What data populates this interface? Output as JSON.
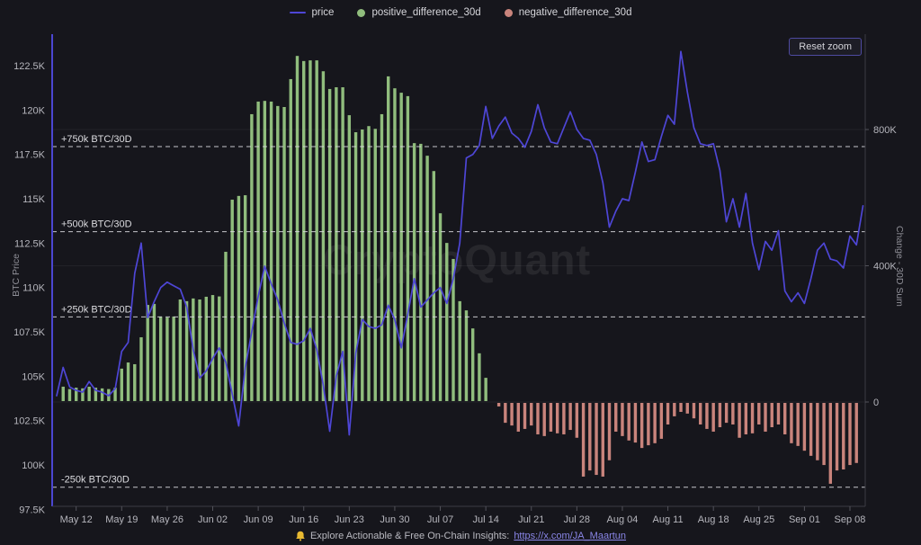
{
  "watermark": "CryptoQuant",
  "toolbar": {
    "reset_zoom_label": "Reset zoom"
  },
  "legend": {
    "position": "top-center",
    "items": [
      {
        "label": "price",
        "marker": "line",
        "color": "#4e46d6"
      },
      {
        "label": "positive_difference_30d",
        "marker": "dot",
        "color": "#90bd7d"
      },
      {
        "label": "negative_difference_30d",
        "marker": "dot",
        "color": "#c9847c"
      }
    ]
  },
  "footer": {
    "icon": "bell-icon",
    "icon_color": "#e8b931",
    "text": "Explore Actionable & Free On-Chain Insights:",
    "link": "https://x.com/JA_Maartun"
  },
  "colors": {
    "background": "#16161c",
    "price_line": "#4e46d6",
    "positive_bar": "#90bd7d",
    "negative_bar": "#c9847c",
    "dashed_annotation": "#d9d9de",
    "tick_label": "#b6b6bd",
    "gridline": "rgba(255,255,255,0.055)",
    "left_axis_line": "#4b46d2",
    "axis_line": "#3c3c44"
  },
  "chart_data": {
    "type": "mixed",
    "subtype": "line + bar (dual axis), daily data",
    "grid": "horizontal gridlines at right-axis ticks only",
    "x_axis": {
      "unit": "day",
      "start_date": "May 09",
      "end_date": "Sep 10",
      "tick_labels": [
        "May 12",
        "May 19",
        "May 26",
        "Jun 02",
        "Jun 09",
        "Jun 16",
        "Jun 23",
        "Jun 30",
        "Jul 07",
        "Jul 14",
        "Jul 21",
        "Jul 28",
        "Aug 04",
        "Aug 11",
        "Aug 18",
        "Aug 25",
        "Sep 01",
        "Sep 08"
      ],
      "tick_day_offsets": [
        3,
        10,
        17,
        24,
        31,
        38,
        45,
        52,
        59,
        66,
        73,
        80,
        87,
        94,
        101,
        108,
        115,
        122
      ]
    },
    "y_left": {
      "title": "BTC Price",
      "unit": "K USD",
      "tick_labels": [
        "122.5K",
        "120K",
        "117.5K",
        "115K",
        "112.5K",
        "110K",
        "107.5K",
        "105K",
        "102.5K",
        "100K",
        "97.5K"
      ],
      "tick_values_k": [
        122.5,
        120,
        117.5,
        115,
        112.5,
        110,
        107.5,
        105,
        102.5,
        100,
        97.5
      ],
      "range_k": [
        98,
        124.3
      ]
    },
    "y_right": {
      "title": "Change - 30D Sum",
      "unit": "K BTC",
      "tick_labels": [
        "800K",
        "400K",
        "0"
      ],
      "tick_values_k": [
        800,
        400,
        0
      ],
      "range_k": [
        -306,
        1080
      ]
    },
    "annotations": [
      {
        "label": "+750k BTC/30D",
        "value_k": 750
      },
      {
        "label": "+500k BTC/30D",
        "value_k": 500
      },
      {
        "label": "+250k BTC/30D",
        "value_k": 250
      },
      {
        "label": "-250k BTC/30D",
        "value_k": -250
      }
    ],
    "series": [
      {
        "name": "price",
        "type": "line",
        "axis": "left",
        "color": "#4e46d6",
        "start_day": 0,
        "start_date": "May 09",
        "values": [
          103.9,
          105.5,
          104.4,
          104.2,
          104.1,
          104.7,
          104.2,
          104.1,
          103.9,
          104.3,
          106.4,
          106.9,
          110.8,
          112.5,
          108.3,
          109.2,
          110.0,
          110.3,
          110.1,
          109.9,
          108.9,
          106.5,
          104.9,
          105.3,
          106.0,
          106.6,
          105.8,
          104.0,
          102.2,
          105.5,
          107.5,
          109.5,
          111.2,
          110.2,
          109.3,
          108.0,
          106.9,
          106.8,
          107.0,
          107.7,
          106.5,
          104.5,
          101.9,
          105.0,
          106.4,
          101.7,
          106.3,
          108.2,
          107.8,
          107.7,
          107.9,
          109.0,
          108.2,
          106.6,
          108.5,
          110.5,
          108.9,
          109.3,
          109.7,
          110.0,
          109.1,
          110.5,
          112.5,
          117.3,
          117.5,
          118.0,
          120.2,
          118.4,
          119.1,
          119.6,
          118.7,
          118.4,
          117.9,
          118.8,
          120.3,
          119.0,
          118.2,
          118.1,
          119.0,
          119.9,
          118.9,
          118.4,
          118.3,
          117.5,
          115.9,
          113.4,
          114.3,
          115.0,
          114.9,
          116.5,
          118.2,
          117.1,
          117.2,
          118.5,
          119.7,
          119.2,
          123.3,
          121.0,
          119.0,
          118.1,
          118.0,
          118.1,
          116.6,
          113.7,
          115.0,
          113.4,
          115.3,
          112.5,
          111.0,
          112.6,
          112.1,
          113.2,
          109.8,
          109.2,
          109.7,
          109.1,
          110.5,
          112.1,
          112.5,
          111.6,
          111.5,
          111.1,
          112.9,
          112.4,
          114.6
        ]
      },
      {
        "name": "positive_difference_30d",
        "type": "bar",
        "axis": "right",
        "color": "#90bd7d",
        "start_day": 1,
        "start_date": "May 10",
        "values": [
          45,
          38,
          42,
          40,
          45,
          42,
          40,
          38,
          42,
          98,
          116,
          111,
          190,
          285,
          288,
          251,
          248,
          251,
          301,
          296,
          304,
          301,
          309,
          314,
          310,
          441,
          594,
          605,
          607,
          845,
          882,
          884,
          882,
          869,
          866,
          948,
          1016,
          1001,
          1003,
          1003,
          971,
          919,
          924,
          924,
          842,
          792,
          800,
          810,
          802,
          845,
          956,
          921,
          908,
          898,
          760,
          758,
          723,
          678,
          554,
          467,
          420,
          296,
          269,
          216,
          143,
          71
        ]
      },
      {
        "name": "negative_difference_30d",
        "type": "bar",
        "axis": "right",
        "color": "#c9847c",
        "start_day": 68,
        "start_date": "Jul 16",
        "values": [
          -13,
          -61,
          -69,
          -87,
          -79,
          -69,
          -95,
          -100,
          -87,
          -92,
          -95,
          -82,
          -105,
          -219,
          -201,
          -214,
          -219,
          -171,
          -87,
          -100,
          -113,
          -119,
          -135,
          -127,
          -121,
          -108,
          -66,
          -42,
          -29,
          -34,
          -48,
          -66,
          -79,
          -87,
          -74,
          -61,
          -66,
          -105,
          -95,
          -92,
          -66,
          -87,
          -74,
          -66,
          -95,
          -121,
          -129,
          -143,
          -158,
          -171,
          -185,
          -240,
          -201,
          -198,
          -185,
          -179
        ]
      }
    ]
  }
}
